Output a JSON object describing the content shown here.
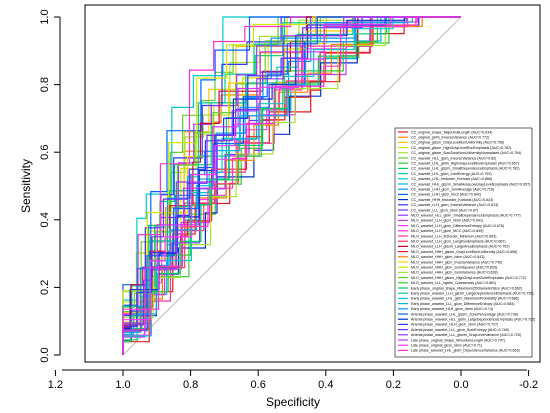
{
  "chart_data": {
    "type": "line",
    "title": "",
    "xlabel": "Specificity",
    "ylabel": "Sensitivity",
    "xlim": [
      1.2,
      -0.2
    ],
    "ylim": [
      0,
      1
    ],
    "x_ticks": [
      "1.2",
      "1.0",
      "0.8",
      "0.6",
      "0.4",
      "0.2",
      "0.0",
      "-0.2"
    ],
    "y_ticks": [
      "0.0",
      "0.2",
      "0.4",
      "0.6",
      "0.8",
      "1.0"
    ],
    "x_tick_values": [
      1.2,
      1.0,
      0.8,
      0.6,
      0.4,
      0.2,
      0.0,
      -0.2
    ],
    "y_tick_values": [
      0,
      0.2,
      0.4,
      0.6,
      0.8,
      1.0
    ],
    "reference_line": {
      "from": [
        1,
        0
      ],
      "to": [
        0,
        1
      ],
      "color": "#bdbdbd"
    },
    "legend_position": "bottom-right",
    "grid": false,
    "series": [
      {
        "name": "CC_original_shape_MajorAxisLength (AUC=0.634)",
        "color": "#e41a1c"
      },
      {
        "name": "CC_original_glrlm_InverseVariance (AUC=0.772)",
        "color": "#ff7f00"
      },
      {
        "name": "CC_original_glszm_GrayLevelNonUniformity (AUC=0.796)",
        "color": "#ffcc00"
      },
      {
        "name": "CC_original_glszm_HighGrayLevelRunEmphasis (AUC=0.762)",
        "color": "#d4e600"
      },
      {
        "name": "CC_original_glszm_SizeZoneNonUniformityNormalized (AUC=0.794)",
        "color": "#a6e22e"
      },
      {
        "name": "CC_wavelet_HLL_glcm_InverseVariance (AUC=0.82)",
        "color": "#66cc33"
      },
      {
        "name": "CC_wavelet_LHL_glrlm_HighGrayLevelRunEmphasis (AUC=0.657)",
        "color": "#33cc33"
      },
      {
        "name": "CC_wavelet_LHL_glszm_SmallDependenceEmphasis (AUC=0.782)",
        "color": "#00cc66"
      },
      {
        "name": "CC_wavelet_LHL_glcm_JointEnergy (AUC=0.793)",
        "color": "#00cc99"
      },
      {
        "name": "CC_wavelet_LHL_firstorder_Kurtosis (AUC=0.866)",
        "color": "#00cccc"
      },
      {
        "name": "CC_wavelet_HHL_glszm_SmallAreaLowGrayLevelEmphasis (AUC=0.657)",
        "color": "#00b3e6"
      },
      {
        "name": "CC_wavelet_LHH_glcm_JointAverage (AUC=0.716)",
        "color": "#0099ff"
      },
      {
        "name": "CC_wavelet_LHH_glcm_Imc2 (AUC=0.842)",
        "color": "#0066ff"
      },
      {
        "name": "CC_wavelet_HHH_firstorder_Kurtosis (AUC=0.624)",
        "color": "#0033cc"
      },
      {
        "name": "CC_wavelet_LLH_glcm_InverseVariance (AUC=0.813)",
        "color": "#3333ff"
      },
      {
        "name": "CC_wavelet_LLL_glcm_Idmn (AUC=0.67)",
        "color": "#6633ff"
      },
      {
        "name": "MLO_wavelet_HLL_gldm_SmallDependenceEmphasis (AUC=0.777)",
        "color": "#9933ff"
      },
      {
        "name": "MLO_wavelet_LLH_glcm_Idmn (AUC=0.641)",
        "color": "#cc33ff"
      },
      {
        "name": "MLO_wavelet_LLH_glcm_DifferenceEntropy (AUC=0.678)",
        "color": "#ff33ff"
      },
      {
        "name": "MLO_wavelet_LLH_glcm_MCC (AUC=0.849)",
        "color": "#ff33cc"
      },
      {
        "name": "MLO_wavelet_LLH_firstorder_Minimum (AUC=0.663)",
        "color": "#ff3399"
      },
      {
        "name": "MLO_wavelet_LLH_glcm_LongRunEmphasis (AUC=0.667)",
        "color": "#ff3366"
      },
      {
        "name": "MLO_wavelet_LLH_glszm_LargeAreaEmphasis (AUC=0.762)",
        "color": "#cc0033"
      },
      {
        "name": "MLO_wavelet_HHH_glszm_GrayLevelNonUniformity (AUC=0.656)",
        "color": "#e41a1c"
      },
      {
        "name": "MLO_wavelet_HHH_glcm_Idmn (AUC=0.643)",
        "color": "#ff7f00"
      },
      {
        "name": "MLO_wavelet_HHH_glcm_InverseVariance (AUC=0.745)",
        "color": "#ffcc00"
      },
      {
        "name": "MLO_wavelet_HHH_glcm_SumSquares (AUC=0.829)",
        "color": "#d4e600"
      },
      {
        "name": "MLO_wavelet_HHH_glcm_SumVariance (AUC=0.628)",
        "color": "#a6e22e"
      },
      {
        "name": "MLO_wavelet_HHH_glszm_HighGrayLevelZoneEmphasis (AUC=0.772)",
        "color": "#66cc33"
      },
      {
        "name": "MLO_wavelet_LLL_ngtdm_Coarseness (AUC=0.661)",
        "color": "#33cc33"
      },
      {
        "name": "Early phase_original_shape_Maximum2DDiameterSlice (AUC=0.662)",
        "color": "#00cc66"
      },
      {
        "name": "Early phase_wavelet_LLH_glszm_LargeDependenceEmphasis (AUC=0.735)",
        "color": "#00cc99"
      },
      {
        "name": "Early phase_wavelet_LHL_glcm_MaximumProbability (AUC=0.686)",
        "color": "#00cccc"
      },
      {
        "name": "Early phase_wavelet_LLL_glcm_DifferenceEntropy (AUC=0.684)",
        "color": "#00b3e6"
      },
      {
        "name": "Early phase_wavelet_HLH_glcm_Idmn (AUC=0.74)",
        "color": "#0099ff"
      },
      {
        "name": "Arterial phase_wavelet_LHL_glszm_ZonePercentage (AUC=0.738)",
        "color": "#0066ff"
      },
      {
        "name": "Arterial phase_wavelet_HLL_gldm_LargeDependenceEmphasis (AUC=0.722)",
        "color": "#0033cc"
      },
      {
        "name": "Arterial phase_wavelet_HLH_glcm_Idmn (AUC=0.727)",
        "color": "#3333ff"
      },
      {
        "name": "Arterial phase_wavelet_LLL_glcm_SumEntropy (AUC=0.748)",
        "color": "#6633ff"
      },
      {
        "name": "Arterial phase_wavelet_LLL_glszm_GrayLevelVariance (AUC=0.725)",
        "color": "#9933ff"
      },
      {
        "name": "Late phase_original_shape_MinorAxisLength (AUC=0.747)",
        "color": "#cc33ff"
      },
      {
        "name": "Late phase_original_glcm_Idmn (AUC=0.71)",
        "color": "#ff33ff"
      },
      {
        "name": "Late phase_wavelet_LHL_gldm_DependenceVariance (AUC=0.663)",
        "color": "#ff33cc"
      }
    ]
  }
}
